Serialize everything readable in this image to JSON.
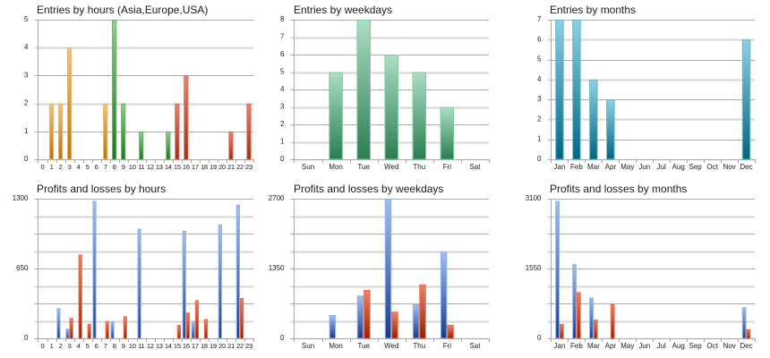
{
  "chart_data": [
    {
      "id": "entries-by-hours",
      "type": "bar",
      "title": "Entries by hours (Asia,Europe,USA)",
      "xlabel": "",
      "ylabel": "",
      "categories": [
        "0",
        "1",
        "2",
        "3",
        "4",
        "5",
        "6",
        "7",
        "8",
        "9",
        "10",
        "11",
        "12",
        "13",
        "14",
        "15",
        "16",
        "17",
        "18",
        "19",
        "20",
        "21",
        "22",
        "23"
      ],
      "values": [
        0,
        2,
        2,
        4,
        0,
        0,
        0,
        2,
        5,
        2,
        0,
        1,
        0,
        0,
        1,
        2,
        3,
        0,
        0,
        0,
        0,
        1,
        0,
        2
      ],
      "regions": [
        {
          "name": "Asia",
          "from": 0,
          "to": 7,
          "color_top": "#f6c373",
          "color_bottom": "#bf7204",
          "border": "#f0b457"
        },
        {
          "name": "Europe",
          "from": 8,
          "to": 14,
          "color_top": "#8fd08f",
          "color_bottom": "#1b761b",
          "border": "#62b562"
        },
        {
          "name": "USA",
          "from": 15,
          "to": 23,
          "color_top": "#ea8573",
          "color_bottom": "#9e2a0e",
          "border": "#e06a58"
        }
      ],
      "ylim": [
        0,
        5
      ],
      "yticks": [
        0,
        1,
        2,
        3,
        4,
        5
      ],
      "grid_step": 1,
      "grid": true,
      "legend": "none"
    },
    {
      "id": "entries-by-weekdays",
      "type": "bar",
      "title": "Entries by weekdays",
      "xlabel": "",
      "ylabel": "",
      "categories": [
        "Sun",
        "Mon",
        "Tue",
        "Wed",
        "Thu",
        "Fri",
        "Sat"
      ],
      "values": [
        0,
        5,
        8,
        6,
        5,
        3,
        0
      ],
      "color_top": "#acdec3",
      "color_bottom": "#2b7d51",
      "border": "#7bcaa0",
      "ylim": [
        0,
        8
      ],
      "yticks": [
        0,
        1,
        2,
        3,
        4,
        5,
        6,
        7,
        8
      ],
      "grid_step": 1,
      "grid": true,
      "legend": "none"
    },
    {
      "id": "entries-by-months",
      "type": "bar",
      "title": "Entries by months",
      "xlabel": "",
      "ylabel": "",
      "categories": [
        "Jan",
        "Feb",
        "Mar",
        "Apr",
        "May",
        "Jun",
        "Jul",
        "Aug",
        "Sep",
        "Oct",
        "Nov",
        "Dec"
      ],
      "values": [
        7,
        7,
        4,
        3,
        0,
        0,
        0,
        0,
        0,
        0,
        0,
        6
      ],
      "color_top": "#8fd0e3",
      "color_bottom": "#00667f",
      "border": "#5fb9d2",
      "ylim": [
        0,
        7
      ],
      "yticks": [
        0,
        1,
        2,
        3,
        4,
        5,
        6,
        7
      ],
      "grid_step": 1,
      "grid": true,
      "legend": "none"
    },
    {
      "id": "profits-losses-by-hours",
      "type": "bar",
      "title": "Profits and losses by hours",
      "xlabel": "",
      "ylabel": "",
      "categories": [
        "0",
        "1",
        "2",
        "3",
        "4",
        "5",
        "6",
        "7",
        "8",
        "9",
        "10",
        "11",
        "12",
        "13",
        "14",
        "15",
        "16",
        "17",
        "18",
        "19",
        "20",
        "21",
        "22",
        "23"
      ],
      "series": [
        {
          "name": "Profits",
          "color_top": "#a3bfee",
          "color_bottom": "#1b3a8e",
          "border": "#8fb0e8",
          "values": [
            0,
            0,
            280,
            90,
            0,
            0,
            1280,
            0,
            160,
            0,
            0,
            1020,
            0,
            0,
            0,
            0,
            1000,
            160,
            0,
            0,
            1060,
            0,
            1245,
            0
          ]
        },
        {
          "name": "Losses",
          "color_top": "#ef8464",
          "color_bottom": "#961f02",
          "border": "#e86a4a",
          "values": [
            0,
            0,
            0,
            190,
            780,
            135,
            0,
            160,
            0,
            205,
            0,
            0,
            0,
            0,
            0,
            125,
            240,
            355,
            180,
            0,
            0,
            0,
            375,
            0
          ]
        }
      ],
      "ylim": [
        0,
        1300
      ],
      "yticks": [
        0,
        650,
        1300
      ],
      "grid_step": 162.5,
      "grid": true,
      "legend": "none"
    },
    {
      "id": "profits-losses-by-weekdays",
      "type": "bar",
      "title": "Profits and losses by weekdays",
      "xlabel": "",
      "ylabel": "",
      "categories": [
        "Sun",
        "Mon",
        "Tue",
        "Wed",
        "Thu",
        "Fri",
        "Sat"
      ],
      "series": [
        {
          "name": "Profits",
          "color_top": "#a3bfee",
          "color_bottom": "#1b3a8e",
          "border": "#8fb0e8",
          "values": [
            0,
            450,
            825,
            2700,
            660,
            1670,
            0
          ]
        },
        {
          "name": "Losses",
          "color_top": "#ef8464",
          "color_bottom": "#961f02",
          "border": "#e86a4a",
          "values": [
            0,
            0,
            935,
            515,
            1040,
            260,
            0
          ]
        }
      ],
      "ylim": [
        0,
        2700
      ],
      "yticks": [
        0,
        1350,
        2700
      ],
      "grid_step": 337.5,
      "grid": true,
      "legend": "none"
    },
    {
      "id": "profits-losses-by-months",
      "type": "bar",
      "title": "Profits and losses by months",
      "xlabel": "",
      "ylabel": "",
      "categories": [
        "Jan",
        "Feb",
        "Mar",
        "Apr",
        "May",
        "Jun",
        "Jul",
        "Aug",
        "Sep",
        "Oct",
        "Nov",
        "Dec"
      ],
      "series": [
        {
          "name": "Profits",
          "color_top": "#a3bfee",
          "color_bottom": "#1b3a8e",
          "border": "#8fb0e8",
          "values": [
            3050,
            1645,
            905,
            0,
            0,
            0,
            0,
            0,
            0,
            0,
            0,
            690
          ]
        },
        {
          "name": "Losses",
          "color_top": "#ef8464",
          "color_bottom": "#961f02",
          "border": "#e86a4a",
          "values": [
            320,
            1025,
            415,
            760,
            0,
            0,
            0,
            0,
            0,
            0,
            0,
            205
          ]
        }
      ],
      "ylim": [
        0,
        3100
      ],
      "yticks": [
        0,
        1550,
        3100
      ],
      "grid_step": 387.5,
      "grid": true,
      "legend": "none"
    }
  ]
}
